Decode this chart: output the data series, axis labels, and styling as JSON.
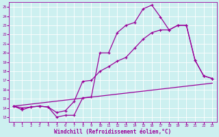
{
  "xlabel": "Windchill (Refroidissement éolien,°C)",
  "bg_color": "#cdf0f0",
  "line_color": "#990099",
  "xlim": [
    -0.5,
    23.5
  ],
  "ylim": [
    12.5,
    25.5
  ],
  "xticks": [
    0,
    1,
    2,
    3,
    4,
    5,
    6,
    7,
    8,
    9,
    10,
    11,
    12,
    13,
    14,
    15,
    16,
    17,
    18,
    19,
    20,
    21,
    22,
    23
  ],
  "yticks": [
    13,
    14,
    15,
    16,
    17,
    18,
    19,
    20,
    21,
    22,
    23,
    24,
    25
  ],
  "line1_x": [
    0,
    1,
    2,
    3,
    4,
    5,
    6,
    7,
    8,
    9,
    10,
    11,
    12,
    13,
    14,
    15,
    16,
    17,
    18,
    19,
    20,
    21,
    22,
    23
  ],
  "line1_y": [
    14.2,
    13.8,
    14.1,
    14.2,
    14.1,
    13.0,
    13.2,
    13.2,
    15.1,
    15.2,
    20.0,
    20.0,
    22.2,
    23.0,
    23.3,
    24.8,
    25.2,
    23.9,
    22.5,
    23.0,
    23.0,
    19.2,
    17.5,
    17.2
  ],
  "line2_x": [
    0,
    23
  ],
  "line2_y": [
    14.2,
    16.7
  ],
  "line3_x": [
    0,
    1,
    2,
    3,
    4,
    5,
    6,
    7,
    8,
    9,
    10,
    11,
    12,
    13,
    14,
    15,
    16,
    17,
    18,
    19,
    20,
    21,
    22,
    23
  ],
  "line3_y": [
    14.2,
    14.0,
    14.1,
    14.2,
    14.1,
    13.5,
    13.7,
    14.7,
    16.9,
    17.0,
    18.0,
    18.5,
    19.1,
    19.5,
    20.5,
    21.5,
    22.2,
    22.5,
    22.5,
    23.0,
    23.0,
    19.2,
    17.5,
    17.2
  ]
}
